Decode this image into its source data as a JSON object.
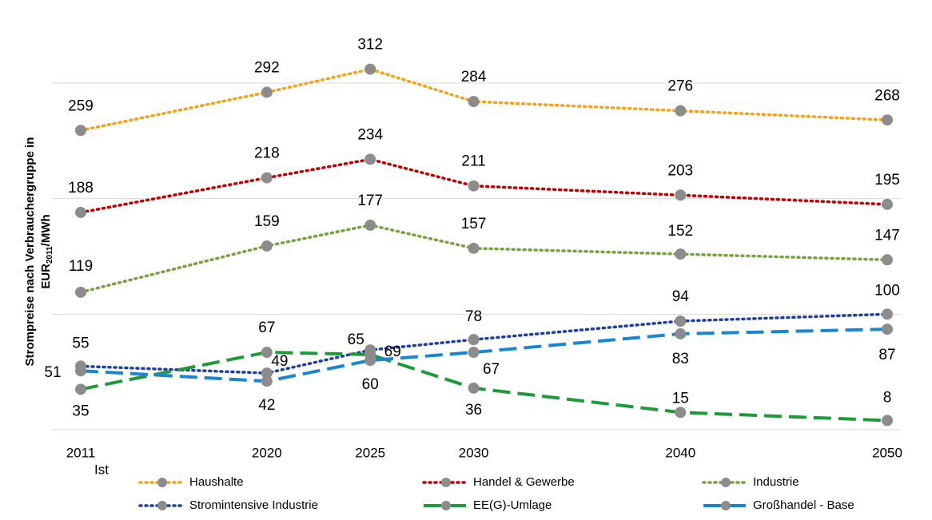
{
  "chart_data": {
    "type": "line",
    "y_label": {
      "line1": "Strompreise  nach Verbrauchergruppe  in",
      "line2": [
        "EUR",
        "2011",
        "/MWh"
      ]
    },
    "x": [
      2011,
      2020,
      2025,
      2030,
      2040,
      2050
    ],
    "xticks": [
      2011,
      2020,
      2025,
      2030,
      2040,
      2050
    ],
    "xlim": [
      2011,
      2050
    ],
    "annotation": "Ist",
    "ylim": [
      0,
      320
    ],
    "yticks": [
      0,
      100,
      200,
      300
    ],
    "grid": true,
    "marker_color": "#8c8c8c",
    "legend": "bottom",
    "series": [
      {
        "name": "Haushalte",
        "color": "#f5a21b",
        "style": "dotted",
        "values": [
          259,
          292,
          312,
          284,
          276,
          268
        ]
      },
      {
        "name": "Handel & Gewerbe",
        "color": "#c00000",
        "style": "dotted",
        "values": [
          188,
          218,
          234,
          211,
          203,
          195
        ]
      },
      {
        "name": "Industrie",
        "color": "#77a03e",
        "style": "dotted",
        "values": [
          119,
          159,
          177,
          157,
          152,
          147
        ]
      },
      {
        "name": "Stromintensive Industrie",
        "color": "#1f3fa0",
        "style": "dotted",
        "values": [
          55,
          49,
          69,
          78,
          94,
          100
        ]
      },
      {
        "name": "EE(G)-Umlage",
        "color": "#1e9a3a",
        "style": "dashed",
        "values": [
          35,
          67,
          65,
          36,
          15,
          8
        ]
      },
      {
        "name": "Großhandel - Base",
        "color": "#1a86cf",
        "style": "dashed",
        "values": [
          51,
          42,
          60,
          67,
          83,
          87
        ]
      }
    ]
  }
}
